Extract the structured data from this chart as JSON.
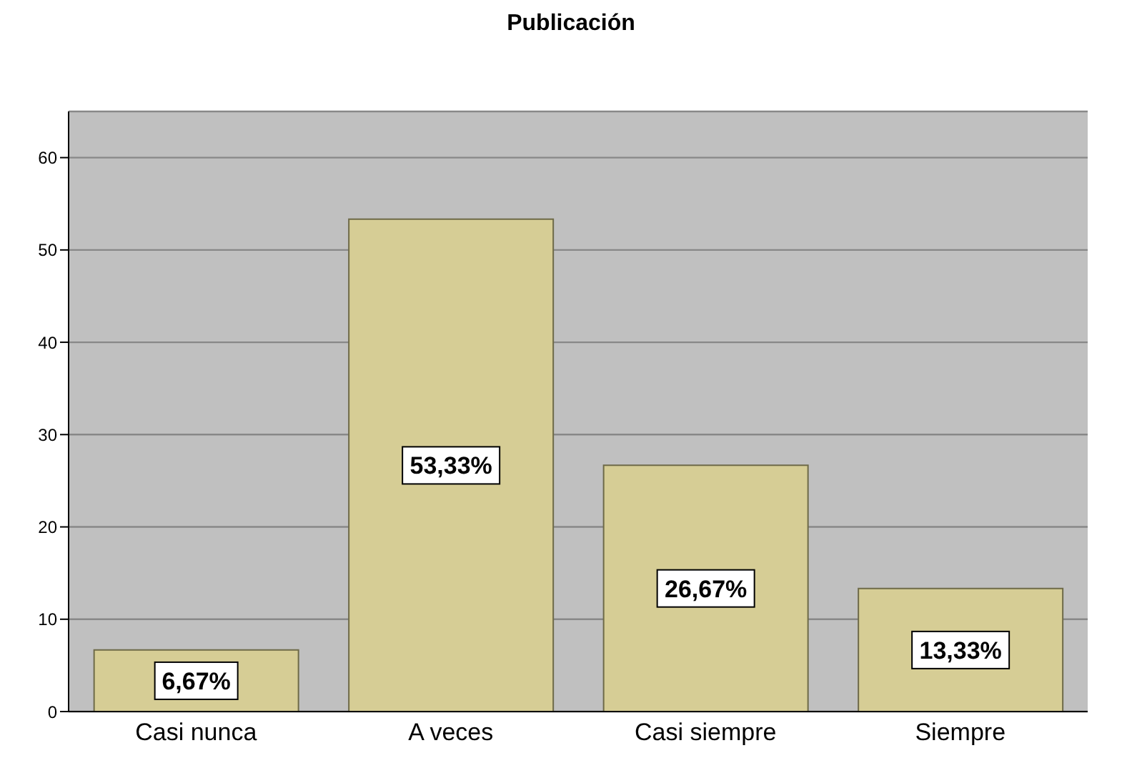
{
  "chart_data": {
    "type": "bar",
    "title": "Publicación",
    "categories": [
      "Casi nunca",
      "A veces",
      "Casi siempre",
      "Siempre"
    ],
    "values": [
      6.67,
      53.33,
      26.67,
      13.33
    ],
    "value_labels": [
      "6,67%",
      "53,33%",
      "26,67%",
      "13,33%"
    ],
    "color": "#d6cd95",
    "ylim": [
      0,
      65
    ],
    "yticks": [
      0,
      10,
      20,
      30,
      40,
      50,
      60
    ],
    "grid": "y"
  }
}
